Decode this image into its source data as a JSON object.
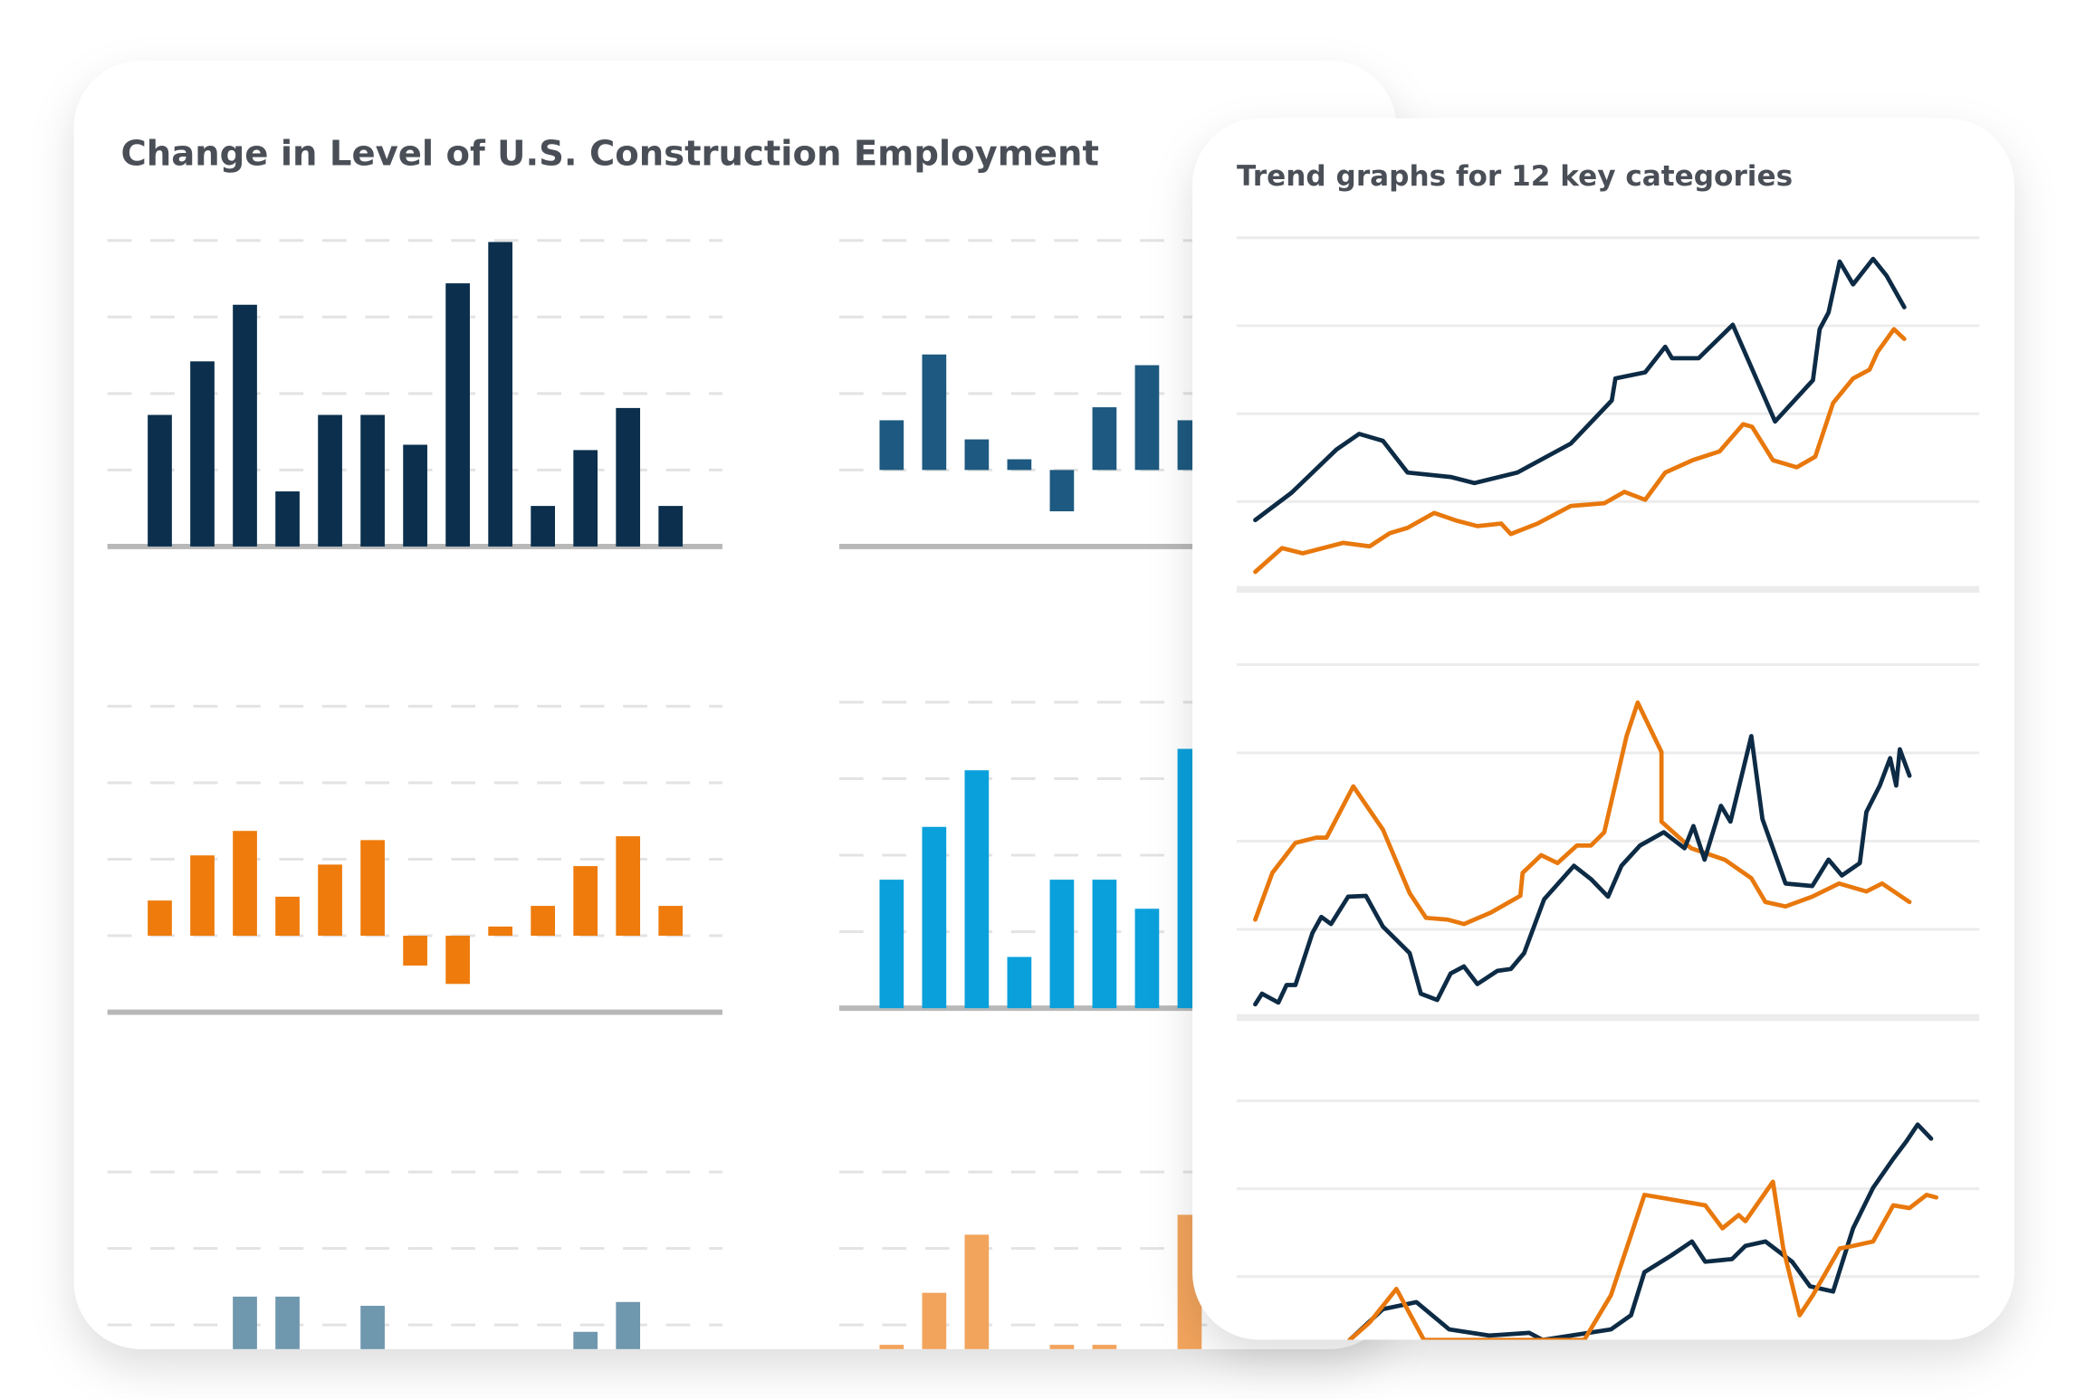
{
  "cards": {
    "left": {
      "title": "Change in Level of U.S. Construction Employment"
    },
    "right": {
      "title": "Trend graphs for 12 key categories"
    }
  },
  "chart_data": [
    {
      "type": "bar",
      "color": "#0b2f4d",
      "ylim": [
        0,
        4
      ],
      "yticks": [
        1,
        2,
        3,
        4
      ],
      "values": [
        1.72,
        2.42,
        3.16,
        0.72,
        1.72,
        1.72,
        1.33,
        3.44,
        3.98,
        0.53,
        1.26,
        1.81,
        0.53
      ]
    },
    {
      "type": "bar",
      "color": "#1d5980",
      "ylim": [
        -1,
        3
      ],
      "yticks": [
        0,
        1,
        2,
        3
      ],
      "values": [
        0.65,
        1.51,
        0.4,
        0.14,
        -0.54,
        0.82,
        1.37,
        0.65
      ]
    },
    {
      "type": "bar",
      "color": "#ee7b0c",
      "ylim": [
        -1,
        3
      ],
      "yticks": [
        0,
        1,
        2,
        3
      ],
      "values": [
        0.46,
        1.05,
        1.37,
        0.51,
        0.93,
        1.25,
        -0.39,
        -0.63,
        0.12,
        0.39,
        0.91,
        1.3,
        0.39
      ]
    },
    {
      "type": "bar",
      "color": "#0aa0dc",
      "ylim": [
        0,
        4
      ],
      "yticks": [
        1,
        2,
        3,
        4
      ],
      "values": [
        1.68,
        2.37,
        3.11,
        0.67,
        1.68,
        1.68,
        1.3,
        3.39
      ]
    },
    {
      "type": "bar",
      "color": "#6f97ae",
      "ylim": [
        0,
        4
      ],
      "yticks": [
        1,
        2,
        3
      ],
      "values": [
        null,
        null,
        1.37,
        1.37,
        null,
        1.25,
        null,
        null,
        null,
        null,
        0.91,
        1.3
      ]
    },
    {
      "type": "bar",
      "color": "#f2a45c",
      "ylim": [
        0,
        4
      ],
      "yticks": [
        1,
        2,
        3
      ],
      "values": [
        0.74,
        1.42,
        2.18,
        null,
        0.74,
        0.74,
        null,
        2.44
      ]
    },
    {
      "type": "line",
      "xlim": [
        0,
        100
      ],
      "ylim": [
        0,
        4
      ],
      "yticks": [
        0,
        1,
        2,
        3,
        4
      ],
      "series": [
        {
          "color": "#0d2b45",
          "x": [
            2.5,
            7.4,
            13.4,
            16.5,
            19.7,
            23.0,
            28.8,
            32.0,
            37.8,
            45.0,
            50.5,
            51.0,
            55.0,
            57.7,
            58.6,
            62.2,
            66.8,
            72.5,
            77.6,
            78.5,
            79.7,
            81.2,
            83.0,
            85.7,
            87.5,
            89.9
          ],
          "values": [
            0.79,
            1.1,
            1.59,
            1.77,
            1.69,
            1.33,
            1.28,
            1.21,
            1.33,
            1.66,
            2.15,
            2.4,
            2.47,
            2.76,
            2.63,
            2.63,
            3.01,
            1.91,
            2.38,
            2.96,
            3.15,
            3.73,
            3.47,
            3.76,
            3.57,
            3.21
          ]
        },
        {
          "color": "#e8780c",
          "x": [
            2.5,
            6.1,
            8.9,
            12.5,
            14.3,
            17.9,
            20.6,
            23.0,
            26.6,
            29.7,
            32.4,
            35.6,
            36.9,
            40.5,
            45.0,
            49.5,
            52.2,
            55.0,
            57.7,
            61.4,
            65.0,
            68.2,
            69.4,
            72.2,
            75.4,
            77.9,
            80.3,
            83.0,
            85.2,
            86.3,
            88.5,
            89.9
          ],
          "values": [
            0.2,
            0.47,
            0.41,
            0.49,
            0.53,
            0.49,
            0.64,
            0.7,
            0.87,
            0.78,
            0.72,
            0.75,
            0.63,
            0.75,
            0.95,
            0.98,
            1.11,
            1.02,
            1.33,
            1.47,
            1.57,
            1.88,
            1.85,
            1.47,
            1.39,
            1.51,
            2.12,
            2.4,
            2.5,
            2.7,
            2.96,
            2.85
          ]
        }
      ]
    },
    {
      "type": "line",
      "xlim": [
        0,
        100
      ],
      "ylim": [
        0,
        4
      ],
      "yticks": [
        0,
        1,
        2,
        3,
        4
      ],
      "series": [
        {
          "color": "#e8780c",
          "x": [
            2.5,
            4.8,
            7.9,
            10.7,
            12.1,
            15.7,
            19.7,
            23.3,
            25.5,
            28.4,
            30.6,
            34.2,
            38.2,
            38.5,
            41.0,
            43.2,
            45.8,
            47.7,
            49.5,
            52.5,
            54.0,
            57.2,
            57.2,
            61.2,
            65.7,
            69.3,
            71.2,
            73.9,
            77.5,
            81.1,
            84.8,
            86.9,
            90.6
          ],
          "values": [
            1.11,
            1.64,
            1.98,
            2.04,
            2.04,
            2.62,
            2.13,
            1.41,
            1.13,
            1.11,
            1.06,
            1.19,
            1.38,
            1.64,
            1.84,
            1.75,
            1.95,
            1.95,
            2.1,
            3.19,
            3.57,
            3.01,
            2.22,
            1.92,
            1.79,
            1.58,
            1.31,
            1.26,
            1.37,
            1.52,
            1.43,
            1.52,
            1.31
          ]
        },
        {
          "color": "#0d2b45",
          "x": [
            2.5,
            3.4,
            5.6,
            6.7,
            7.9,
            10.2,
            11.4,
            12.7,
            15.0,
            17.4,
            19.7,
            21.5,
            23.3,
            24.8,
            27.0,
            28.8,
            30.6,
            32.4,
            35.1,
            36.9,
            38.7,
            41.4,
            43.5,
            45.4,
            47.7,
            50.0,
            51.8,
            54.3,
            57.5,
            60.3,
            61.5,
            63.0,
            65.2,
            66.5,
            69.3,
            70.8,
            73.9,
            77.5,
            79.7,
            81.5,
            83.9,
            84.8,
            86.6,
            88.0,
            88.8,
            89.3,
            90.6
          ],
          "values": [
            0.15,
            0.27,
            0.17,
            0.37,
            0.37,
            0.96,
            1.14,
            1.06,
            1.37,
            1.38,
            1.03,
            0.88,
            0.73,
            0.27,
            0.2,
            0.5,
            0.58,
            0.38,
            0.53,
            0.55,
            0.73,
            1.34,
            1.54,
            1.72,
            1.57,
            1.37,
            1.72,
            1.95,
            2.1,
            1.92,
            2.17,
            1.79,
            2.4,
            2.22,
            3.19,
            2.25,
            1.52,
            1.49,
            1.79,
            1.61,
            1.75,
            2.33,
            2.63,
            2.94,
            2.63,
            3.04,
            2.74
          ]
        }
      ]
    },
    {
      "type": "line",
      "xlim": [
        0,
        100
      ],
      "ylim": [
        0,
        4
      ],
      "yticks": [
        1,
        2,
        3,
        4
      ],
      "series": [
        {
          "color": "#0d2b45",
          "x": [
            15.2,
            19.7,
            24.2,
            28.6,
            34.0,
            39.4,
            41.2,
            50.4,
            53.1,
            54.9,
            58.5,
            61.3,
            63.1,
            66.7,
            68.5,
            71.2,
            74.8,
            77.2,
            80.3,
            83.0,
            85.7,
            88.4,
            90.2,
            91.7,
            93.5
          ],
          "values": [
            1.28,
            1.63,
            1.71,
            1.4,
            1.33,
            1.36,
            1.28,
            1.4,
            1.56,
            2.05,
            2.24,
            2.4,
            2.17,
            2.2,
            2.35,
            2.4,
            2.17,
            1.89,
            1.83,
            2.55,
            3.01,
            3.34,
            3.54,
            3.73,
            3.57
          ]
        },
        {
          "color": "#e8780c",
          "x": [
            15.2,
            17.9,
            21.5,
            25.2,
            46.8,
            50.4,
            54.9,
            57.7,
            63.1,
            65.4,
            67.6,
            68.5,
            72.2,
            73.6,
            75.8,
            77.6,
            81.2,
            83.0,
            85.7,
            88.4,
            90.6,
            92.9,
            94.2
          ],
          "values": [
            1.28,
            1.48,
            1.86,
            1.28,
            1.28,
            1.79,
            2.93,
            2.89,
            2.81,
            2.55,
            2.7,
            2.63,
            3.08,
            2.32,
            1.56,
            1.79,
            2.32,
            2.35,
            2.4,
            2.81,
            2.78,
            2.93,
            2.9
          ]
        }
      ]
    }
  ]
}
